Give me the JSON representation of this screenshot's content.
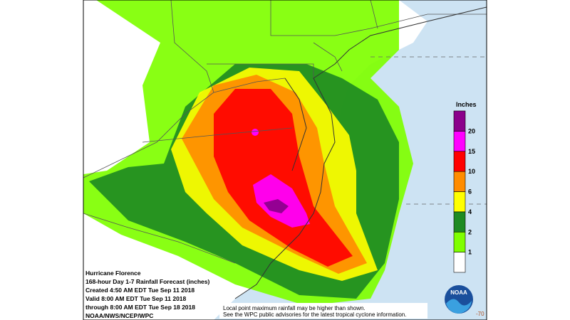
{
  "title_block": {
    "lines": [
      "Hurricane Florence",
      "168-hour Day 1-7 Rainfall Forecast (inches)",
      "Created 4:50 AM EDT Tue Sep 11 2018",
      "Valid 8:00 AM EDT Tue Sep 11 2018",
      "through 8:00 AM EDT Tue Sep 18 2018",
      "NOAA/NWS/NCEP/WPC"
    ]
  },
  "legend": {
    "title": "Inches",
    "labels": [
      "1",
      "2",
      "4",
      "6",
      "10",
      "15",
      "20"
    ],
    "colors": [
      "#ffffff",
      "#7fff00",
      "#1e8b22",
      "#ffff00",
      "#ff8c00",
      "#ff0000",
      "#ff00ff",
      "#8b008b"
    ]
  },
  "disclaimer": [
    "Local point maximum rainfall may be higher than shown.",
    "See the WPC public advisories for the latest tropical cyclone information."
  ],
  "corner_label": "-70",
  "logo_text": "NOAA"
}
